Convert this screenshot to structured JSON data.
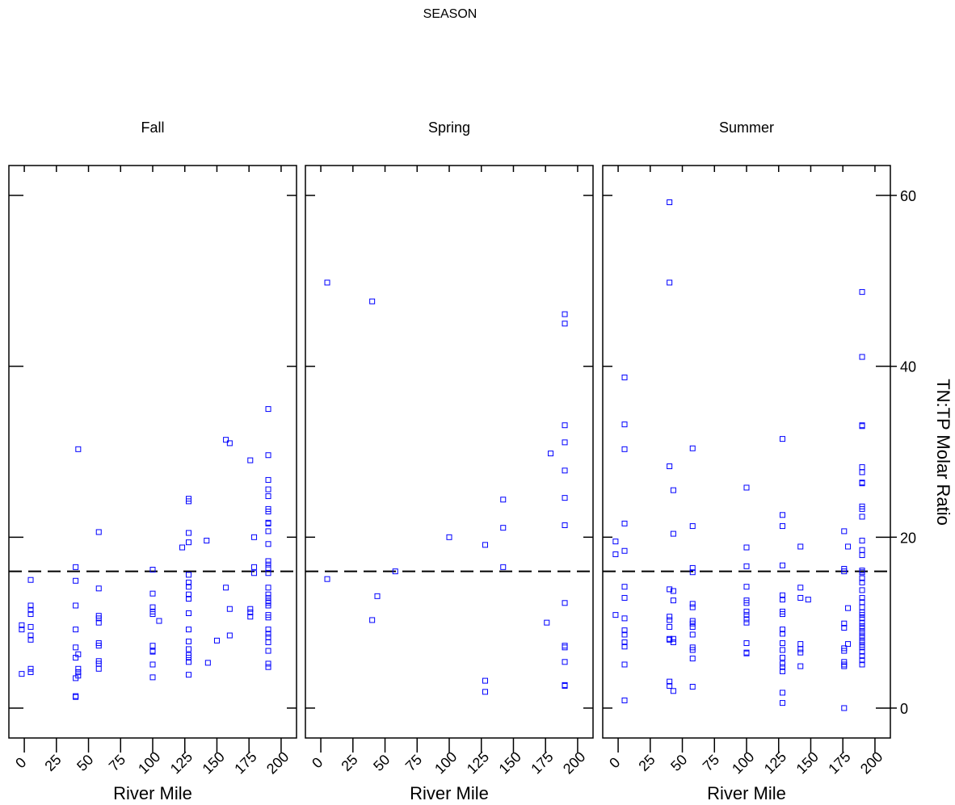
{
  "figure": {
    "super_title": "SEASON",
    "colors": {
      "points": "#0000ff",
      "frame": "#000000",
      "reference_line": "#000000"
    }
  },
  "chart_data": {
    "type": "scatter",
    "layout": "three side-by-side panels sharing a y axis",
    "xlabel": "River Mile",
    "ylabel": "TN:TP Molar Ratio",
    "xlim": [
      -12,
      212
    ],
    "ylim": [
      -3.5,
      63.5
    ],
    "xticks": [
      0,
      25,
      50,
      75,
      100,
      125,
      150,
      175,
      200
    ],
    "yticks": [
      0,
      20,
      40,
      60
    ],
    "yaxis_side": "right",
    "reference_line": {
      "y": 16,
      "style": "dashed"
    },
    "marker": "open square",
    "panels": [
      {
        "name": "Fall",
        "points": [
          [
            -2,
            9.7
          ],
          [
            -2,
            9.2
          ],
          [
            -2,
            4
          ],
          [
            5,
            15
          ],
          [
            5,
            12
          ],
          [
            5,
            11.5
          ],
          [
            5,
            11
          ],
          [
            5,
            9.5
          ],
          [
            5,
            8.5
          ],
          [
            5,
            8
          ],
          [
            5,
            4.6
          ],
          [
            5,
            4.2
          ],
          [
            40,
            16.5
          ],
          [
            40,
            14.9
          ],
          [
            40,
            12
          ],
          [
            40,
            9.2
          ],
          [
            40,
            7.1
          ],
          [
            40,
            5.9
          ],
          [
            40,
            3.5
          ],
          [
            40,
            1.4
          ],
          [
            40,
            1.3
          ],
          [
            42,
            30.3
          ],
          [
            42,
            6.3
          ],
          [
            42,
            4.6
          ],
          [
            42,
            4.2
          ],
          [
            42,
            3.8
          ],
          [
            58,
            20.6
          ],
          [
            58,
            14
          ],
          [
            58,
            10.8
          ],
          [
            58,
            10.5
          ],
          [
            58,
            10
          ],
          [
            58,
            7.6
          ],
          [
            58,
            7.3
          ],
          [
            58,
            5.5
          ],
          [
            58,
            5.2
          ],
          [
            58,
            4.6
          ],
          [
            100,
            16.2
          ],
          [
            100,
            13.4
          ],
          [
            100,
            11.8
          ],
          [
            100,
            11.3
          ],
          [
            100,
            11
          ],
          [
            100,
            7.3
          ],
          [
            100,
            6.7
          ],
          [
            100,
            6.6
          ],
          [
            100,
            5.1
          ],
          [
            100,
            3.6
          ],
          [
            105,
            10.2
          ],
          [
            123,
            18.8
          ],
          [
            128,
            24.5
          ],
          [
            128,
            24.2
          ],
          [
            128,
            20.5
          ],
          [
            128,
            19.4
          ],
          [
            128,
            15.6
          ],
          [
            128,
            14.7
          ],
          [
            128,
            14.2
          ],
          [
            128,
            13.3
          ],
          [
            128,
            12.8
          ],
          [
            128,
            11.1
          ],
          [
            128,
            9.2
          ],
          [
            128,
            7.8
          ],
          [
            128,
            6.9
          ],
          [
            128,
            6.2
          ],
          [
            128,
            5.9
          ],
          [
            128,
            5.4
          ],
          [
            128,
            3.9
          ],
          [
            142,
            19.6
          ],
          [
            143,
            5.3
          ],
          [
            150,
            7.9
          ],
          [
            157,
            31.4
          ],
          [
            160,
            31
          ],
          [
            157,
            14.1
          ],
          [
            160,
            11.6
          ],
          [
            160,
            8.5
          ],
          [
            176,
            29
          ],
          [
            176,
            11.6
          ],
          [
            176,
            11.2
          ],
          [
            176,
            10.7
          ],
          [
            179,
            20
          ],
          [
            179,
            16.5
          ],
          [
            179,
            15.8
          ],
          [
            190,
            35
          ],
          [
            190,
            29.6
          ],
          [
            190,
            26.7
          ],
          [
            190,
            25.6
          ],
          [
            190,
            24.8
          ],
          [
            190,
            23.3
          ],
          [
            190,
            23
          ],
          [
            190,
            21.7
          ],
          [
            190,
            21.6
          ],
          [
            190,
            20.7
          ],
          [
            190,
            19.2
          ],
          [
            190,
            17.2
          ],
          [
            190,
            16.8
          ],
          [
            190,
            16.4
          ],
          [
            190,
            15.8
          ],
          [
            190,
            14.1
          ],
          [
            190,
            13.3
          ],
          [
            190,
            12.9
          ],
          [
            190,
            12.5
          ],
          [
            190,
            12.3
          ],
          [
            190,
            12
          ],
          [
            190,
            10.9
          ],
          [
            190,
            10.6
          ],
          [
            190,
            9.2
          ],
          [
            190,
            8.7
          ],
          [
            190,
            8.3
          ],
          [
            190,
            7.7
          ],
          [
            190,
            6.7
          ],
          [
            190,
            5.2
          ],
          [
            190,
            4.8
          ]
        ]
      },
      {
        "name": "Spring",
        "points": [
          [
            5,
            49.8
          ],
          [
            5,
            15.1
          ],
          [
            40,
            47.6
          ],
          [
            40,
            10.3
          ],
          [
            44,
            13.1
          ],
          [
            58,
            16
          ],
          [
            100,
            20
          ],
          [
            128,
            19.1
          ],
          [
            128,
            3.2
          ],
          [
            128,
            1.9
          ],
          [
            142,
            24.4
          ],
          [
            142,
            21.1
          ],
          [
            142,
            16.5
          ],
          [
            176,
            10
          ],
          [
            179,
            29.8
          ],
          [
            190,
            46.1
          ],
          [
            190,
            45
          ],
          [
            190,
            33.1
          ],
          [
            190,
            31.1
          ],
          [
            190,
            27.8
          ],
          [
            190,
            24.6
          ],
          [
            190,
            21.4
          ],
          [
            190,
            12.3
          ],
          [
            190,
            7.3
          ],
          [
            190,
            7.1
          ],
          [
            190,
            5.4
          ],
          [
            190,
            2.7
          ],
          [
            190,
            2.6
          ]
        ]
      },
      {
        "name": "Summer",
        "points": [
          [
            -2,
            19.5
          ],
          [
            -2,
            18
          ],
          [
            -2,
            10.9
          ],
          [
            5,
            38.7
          ],
          [
            5,
            33.2
          ],
          [
            5,
            30.3
          ],
          [
            5,
            21.6
          ],
          [
            5,
            18.4
          ],
          [
            5,
            14.2
          ],
          [
            5,
            12.9
          ],
          [
            5,
            10.5
          ],
          [
            5,
            9.1
          ],
          [
            5,
            8.6
          ],
          [
            5,
            7.7
          ],
          [
            5,
            7.2
          ],
          [
            5,
            5.1
          ],
          [
            5,
            0.9
          ],
          [
            40,
            59.2
          ],
          [
            40,
            49.8
          ],
          [
            40,
            28.3
          ],
          [
            40,
            13.9
          ],
          [
            40,
            10.7
          ],
          [
            40,
            10.3
          ],
          [
            40,
            9.5
          ],
          [
            40,
            8.1
          ],
          [
            40,
            8
          ],
          [
            40,
            3.1
          ],
          [
            40,
            2.6
          ],
          [
            43,
            25.5
          ],
          [
            43,
            20.4
          ],
          [
            43,
            13.7
          ],
          [
            43,
            12.6
          ],
          [
            43,
            8.1
          ],
          [
            43,
            7.7
          ],
          [
            43,
            2
          ],
          [
            58,
            30.4
          ],
          [
            58,
            21.3
          ],
          [
            58,
            16.4
          ],
          [
            58,
            15.9
          ],
          [
            58,
            12.2
          ],
          [
            58,
            11.8
          ],
          [
            58,
            10.2
          ],
          [
            58,
            9.9
          ],
          [
            58,
            9.5
          ],
          [
            58,
            8.6
          ],
          [
            58,
            7.1
          ],
          [
            58,
            6.8
          ],
          [
            58,
            5.8
          ],
          [
            58,
            2.5
          ],
          [
            100,
            25.8
          ],
          [
            100,
            18.8
          ],
          [
            100,
            16.6
          ],
          [
            100,
            14.2
          ],
          [
            100,
            12.6
          ],
          [
            100,
            12.3
          ],
          [
            100,
            11.3
          ],
          [
            100,
            10.9
          ],
          [
            100,
            10.4
          ],
          [
            100,
            10
          ],
          [
            100,
            7.6
          ],
          [
            100,
            6.5
          ],
          [
            100,
            6.4
          ],
          [
            128,
            31.5
          ],
          [
            128,
            22.6
          ],
          [
            128,
            21.3
          ],
          [
            128,
            16.7
          ],
          [
            128,
            13.2
          ],
          [
            128,
            12.7
          ],
          [
            128,
            11.3
          ],
          [
            128,
            11
          ],
          [
            128,
            9.2
          ],
          [
            128,
            8.7
          ],
          [
            128,
            7.6
          ],
          [
            128,
            6.8
          ],
          [
            128,
            5.9
          ],
          [
            128,
            5.2
          ],
          [
            128,
            4.8
          ],
          [
            128,
            4.3
          ],
          [
            128,
            1.8
          ],
          [
            128,
            0.6
          ],
          [
            142,
            18.9
          ],
          [
            142,
            14.1
          ],
          [
            142,
            12.9
          ],
          [
            142,
            7.5
          ],
          [
            142,
            6.9
          ],
          [
            142,
            6.5
          ],
          [
            142,
            4.9
          ],
          [
            148,
            12.7
          ],
          [
            176,
            20.7
          ],
          [
            176,
            16.3
          ],
          [
            176,
            16
          ],
          [
            176,
            9.9
          ],
          [
            176,
            9.4
          ],
          [
            176,
            7
          ],
          [
            176,
            6.7
          ],
          [
            176,
            5.4
          ],
          [
            176,
            5.1
          ],
          [
            176,
            4.9
          ],
          [
            176,
            0
          ],
          [
            179,
            18.9
          ],
          [
            179,
            11.7
          ],
          [
            179,
            7.5
          ],
          [
            190,
            48.7
          ],
          [
            190,
            41.1
          ],
          [
            190,
            33.1
          ],
          [
            190,
            33
          ],
          [
            190,
            28.2
          ],
          [
            190,
            27.6
          ],
          [
            190,
            26.4
          ],
          [
            190,
            26.3
          ],
          [
            190,
            23.6
          ],
          [
            190,
            23.3
          ],
          [
            190,
            22.4
          ],
          [
            190,
            19.6
          ],
          [
            190,
            18.5
          ],
          [
            190,
            17.9
          ],
          [
            190,
            16.1
          ],
          [
            190,
            15.9
          ],
          [
            190,
            15.2
          ],
          [
            190,
            14.7
          ],
          [
            190,
            13.8
          ],
          [
            190,
            12.9
          ],
          [
            190,
            12.4
          ],
          [
            190,
            11.8
          ],
          [
            190,
            11.2
          ],
          [
            190,
            10.9
          ],
          [
            190,
            10.5
          ],
          [
            190,
            10
          ],
          [
            190,
            9.6
          ],
          [
            190,
            9.3
          ],
          [
            190,
            8.9
          ],
          [
            190,
            8.5
          ],
          [
            190,
            8.2
          ],
          [
            190,
            7.8
          ],
          [
            190,
            7.4
          ],
          [
            190,
            7.1
          ],
          [
            190,
            6.6
          ],
          [
            190,
            6.1
          ],
          [
            190,
            5.6
          ],
          [
            190,
            5.1
          ]
        ]
      }
    ]
  }
}
